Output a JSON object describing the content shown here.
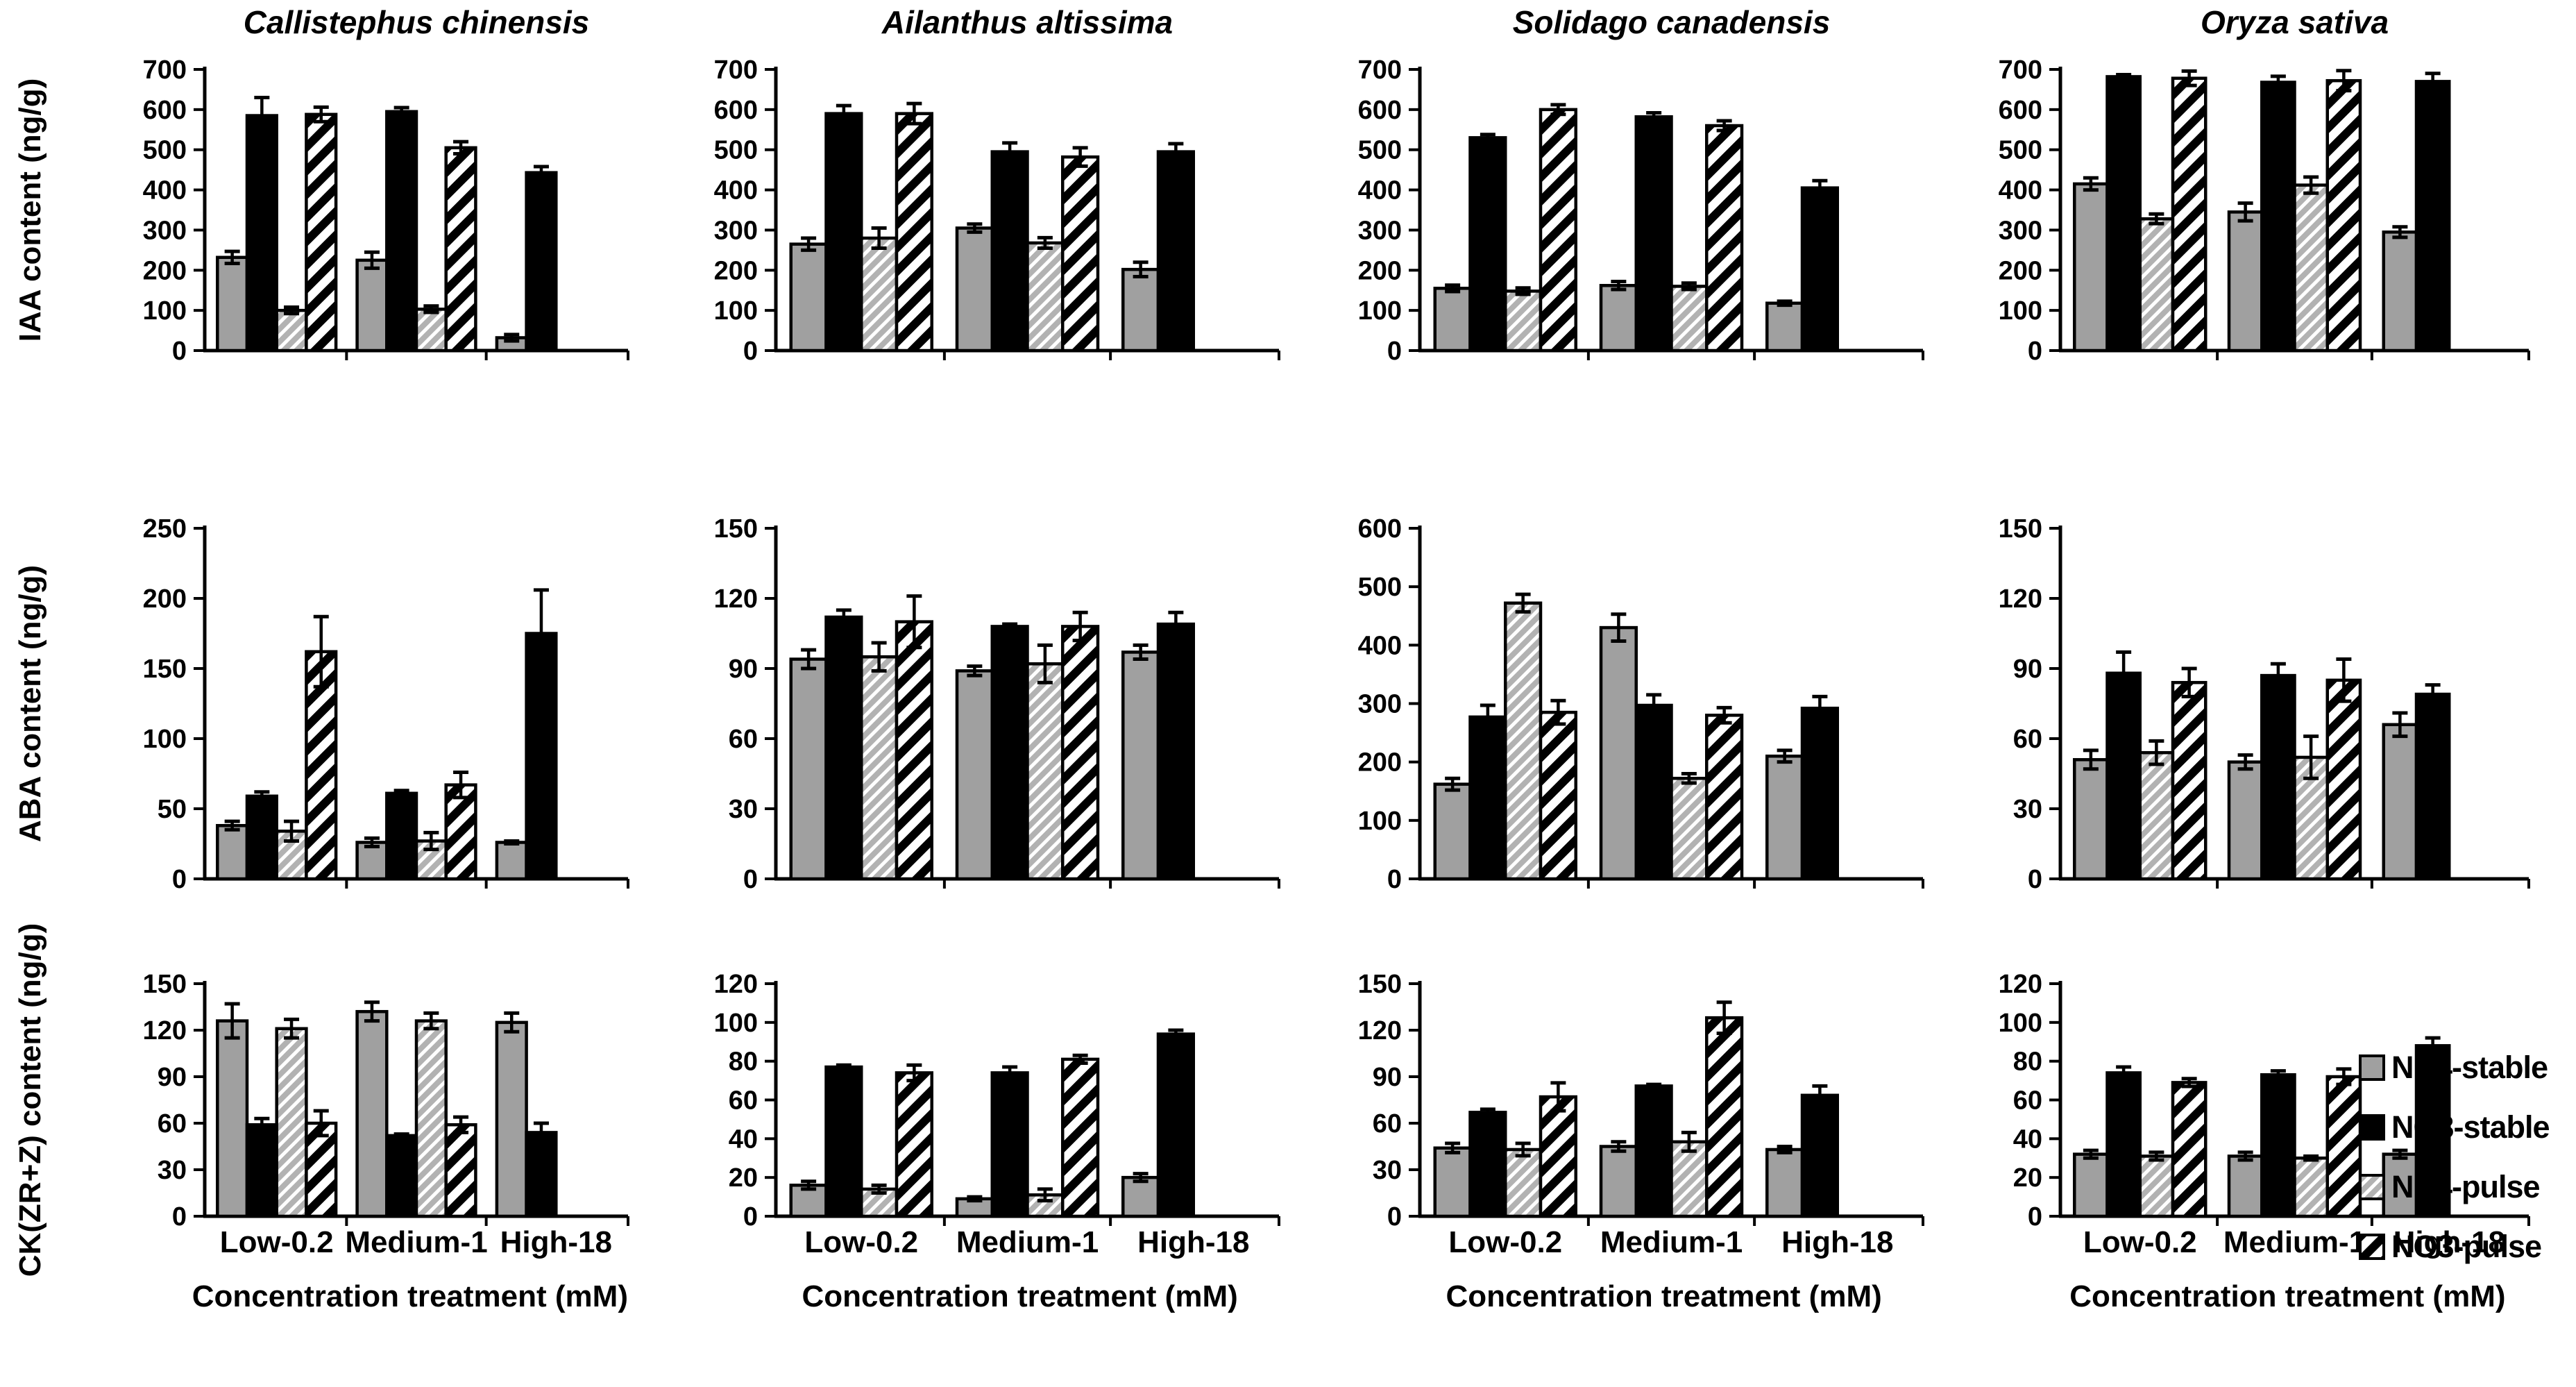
{
  "figure": {
    "background": "#ffffff",
    "x_axis_title": "Concentration treatment (mM)",
    "categories": [
      "Low-0.2",
      "Medium-1",
      "High-18"
    ],
    "row_ylabels": [
      "IAA content (ng/g)",
      "ABA content (ng/g)",
      "CK(ZR+Z) content (ng/g)"
    ],
    "column_titles": [
      "Callistephus chinensis",
      "Ailanthus altissima",
      "Solidago canadensis",
      "Oryza sativa"
    ],
    "legend": {
      "position": "right-bottom",
      "items": [
        {
          "label": "NH4-stable",
          "pattern": "gray-solid"
        },
        {
          "label": "NO3-stable",
          "pattern": "black-solid"
        },
        {
          "label": "NH4-pulse",
          "pattern": "gray-hatch"
        },
        {
          "label": "NO3-pulse",
          "pattern": "black-hatch"
        }
      ]
    },
    "colors": {
      "bar_gray": "#a0a0a0",
      "bar_black": "#000000",
      "hatch_gray_bg": "#b2b2b2",
      "hatch_gray_stripe": "#ffffff",
      "hatch_black_bg": "#ffffff",
      "hatch_black_stripe": "#000000",
      "axis": "#000000",
      "text": "#000000"
    }
  },
  "chart_data": [
    {
      "type": "bar",
      "row": 0,
      "col": 0,
      "title": "Callistephus chinensis",
      "ylabel": "IAA content (ng/g)",
      "ylim": [
        0,
        700
      ],
      "ystep": 100,
      "grid": false,
      "categories": [
        "Low-0.2",
        "Medium-1",
        "High-18"
      ],
      "series": [
        {
          "name": "NH4-stable",
          "values": [
            232,
            225,
            32
          ],
          "errors": [
            15,
            20,
            8
          ]
        },
        {
          "name": "NO3-stable",
          "values": [
            585,
            595,
            443
          ],
          "errors": [
            45,
            10,
            15
          ]
        },
        {
          "name": "NH4-pulse",
          "values": [
            100,
            103,
            null
          ],
          "errors": [
            8,
            8,
            null
          ]
        },
        {
          "name": "NO3-pulse",
          "values": [
            588,
            505,
            null
          ],
          "errors": [
            18,
            15,
            null
          ]
        }
      ]
    },
    {
      "type": "bar",
      "row": 0,
      "col": 1,
      "title": "Ailanthus altissima",
      "ylabel": null,
      "ylim": [
        0,
        700
      ],
      "ystep": 100,
      "grid": false,
      "categories": [
        "Low-0.2",
        "Medium-1",
        "High-18"
      ],
      "series": [
        {
          "name": "NH4-stable",
          "values": [
            265,
            305,
            202
          ],
          "errors": [
            15,
            10,
            18
          ]
        },
        {
          "name": "NO3-stable",
          "values": [
            590,
            495,
            495
          ],
          "errors": [
            20,
            22,
            20
          ]
        },
        {
          "name": "NH4-pulse",
          "values": [
            280,
            268,
            null
          ],
          "errors": [
            25,
            13,
            null
          ]
        },
        {
          "name": "NO3-pulse",
          "values": [
            590,
            482,
            null
          ],
          "errors": [
            25,
            23,
            null
          ]
        }
      ]
    },
    {
      "type": "bar",
      "row": 0,
      "col": 2,
      "title": "Solidago canadensis",
      "ylabel": null,
      "ylim": [
        0,
        700
      ],
      "ystep": 100,
      "grid": false,
      "categories": [
        "Low-0.2",
        "Medium-1",
        "High-18"
      ],
      "series": [
        {
          "name": "NH4-stable",
          "values": [
            155,
            162,
            118
          ],
          "errors": [
            8,
            10,
            5
          ]
        },
        {
          "name": "NO3-stable",
          "values": [
            530,
            582,
            405
          ],
          "errors": [
            8,
            10,
            18
          ]
        },
        {
          "name": "NH4-pulse",
          "values": [
            148,
            160,
            null
          ],
          "errors": [
            8,
            8,
            null
          ]
        },
        {
          "name": "NO3-pulse",
          "values": [
            600,
            560,
            null
          ],
          "errors": [
            12,
            12,
            null
          ]
        }
      ]
    },
    {
      "type": "bar",
      "row": 0,
      "col": 3,
      "title": "Oryza sativa",
      "ylabel": null,
      "ylim": [
        0,
        700
      ],
      "ystep": 100,
      "grid": false,
      "categories": [
        "Low-0.2",
        "Medium-1",
        "High-18"
      ],
      "series": [
        {
          "name": "NH4-stable",
          "values": [
            415,
            345,
            295
          ],
          "errors": [
            15,
            22,
            13
          ]
        },
        {
          "name": "NO3-stable",
          "values": [
            682,
            668,
            670
          ],
          "errors": [
            5,
            15,
            20
          ]
        },
        {
          "name": "NH4-pulse",
          "values": [
            328,
            412,
            null
          ],
          "errors": [
            12,
            20,
            null
          ]
        },
        {
          "name": "NO3-pulse",
          "values": [
            678,
            672,
            null
          ],
          "errors": [
            18,
            25,
            null
          ]
        }
      ]
    },
    {
      "type": "bar",
      "row": 1,
      "col": 0,
      "title": null,
      "ylabel": "ABA content (ng/g)",
      "ylim": [
        0,
        250
      ],
      "ystep": 50,
      "grid": false,
      "categories": [
        "Low-0.2",
        "Medium-1",
        "High-18"
      ],
      "series": [
        {
          "name": "NH4-stable",
          "values": [
            38,
            26,
            26
          ],
          "errors": [
            3,
            3,
            1
          ]
        },
        {
          "name": "NO3-stable",
          "values": [
            59,
            61,
            175
          ],
          "errors": [
            3,
            2,
            31
          ]
        },
        {
          "name": "NH4-pulse",
          "values": [
            34,
            27,
            null
          ],
          "errors": [
            7,
            6,
            null
          ]
        },
        {
          "name": "NO3-pulse",
          "values": [
            162,
            67,
            null
          ],
          "errors": [
            25,
            9,
            null
          ]
        }
      ]
    },
    {
      "type": "bar",
      "row": 1,
      "col": 1,
      "title": null,
      "ylabel": null,
      "ylim": [
        0,
        150
      ],
      "ystep": 30,
      "grid": false,
      "categories": [
        "Low-0.2",
        "Medium-1",
        "High-18"
      ],
      "series": [
        {
          "name": "NH4-stable",
          "values": [
            94,
            89,
            97
          ],
          "errors": [
            4,
            2,
            3
          ]
        },
        {
          "name": "NO3-stable",
          "values": [
            112,
            108,
            109
          ],
          "errors": [
            3,
            1,
            5
          ]
        },
        {
          "name": "NH4-pulse",
          "values": [
            95,
            92,
            null
          ],
          "errors": [
            6,
            8,
            null
          ]
        },
        {
          "name": "NO3-pulse",
          "values": [
            110,
            108,
            null
          ],
          "errors": [
            11,
            6,
            null
          ]
        }
      ]
    },
    {
      "type": "bar",
      "row": 1,
      "col": 2,
      "title": null,
      "ylabel": null,
      "ylim": [
        0,
        600
      ],
      "ystep": 100,
      "grid": false,
      "categories": [
        "Low-0.2",
        "Medium-1",
        "High-18"
      ],
      "series": [
        {
          "name": "NH4-stable",
          "values": [
            162,
            430,
            210
          ],
          "errors": [
            10,
            23,
            10
          ]
        },
        {
          "name": "NO3-stable",
          "values": [
            277,
            297,
            292
          ],
          "errors": [
            20,
            18,
            20
          ]
        },
        {
          "name": "NH4-pulse",
          "values": [
            472,
            172,
            null
          ],
          "errors": [
            15,
            8,
            null
          ]
        },
        {
          "name": "NO3-pulse",
          "values": [
            285,
            280,
            null
          ],
          "errors": [
            20,
            13,
            null
          ]
        }
      ]
    },
    {
      "type": "bar",
      "row": 1,
      "col": 3,
      "title": null,
      "ylabel": null,
      "ylim": [
        0,
        150
      ],
      "ystep": 30,
      "grid": false,
      "categories": [
        "Low-0.2",
        "Medium-1",
        "High-18"
      ],
      "series": [
        {
          "name": "NH4-stable",
          "values": [
            51,
            50,
            66
          ],
          "errors": [
            4,
            3,
            5
          ]
        },
        {
          "name": "NO3-stable",
          "values": [
            88,
            87,
            79
          ],
          "errors": [
            9,
            5,
            4
          ]
        },
        {
          "name": "NH4-pulse",
          "values": [
            54,
            52,
            null
          ],
          "errors": [
            5,
            9,
            null
          ]
        },
        {
          "name": "NO3-pulse",
          "values": [
            84,
            85,
            null
          ],
          "errors": [
            6,
            9,
            null
          ]
        }
      ]
    },
    {
      "type": "bar",
      "row": 2,
      "col": 0,
      "title": null,
      "ylabel": "CK(ZR+Z) content (ng/g)",
      "ylim": [
        0,
        150
      ],
      "ystep": 30,
      "grid": false,
      "categories": [
        "Low-0.2",
        "Medium-1",
        "High-18"
      ],
      "series": [
        {
          "name": "NH4-stable",
          "values": [
            126,
            132,
            125
          ],
          "errors": [
            11,
            6,
            6
          ]
        },
        {
          "name": "NO3-stable",
          "values": [
            59,
            52,
            54
          ],
          "errors": [
            4,
            1,
            6
          ]
        },
        {
          "name": "NH4-pulse",
          "values": [
            121,
            126,
            null
          ],
          "errors": [
            6,
            5,
            null
          ]
        },
        {
          "name": "NO3-pulse",
          "values": [
            60,
            59,
            null
          ],
          "errors": [
            8,
            5,
            null
          ]
        }
      ]
    },
    {
      "type": "bar",
      "row": 2,
      "col": 1,
      "title": null,
      "ylabel": null,
      "ylim": [
        0,
        120
      ],
      "ystep": 20,
      "grid": false,
      "categories": [
        "Low-0.2",
        "Medium-1",
        "High-18"
      ],
      "series": [
        {
          "name": "NH4-stable",
          "values": [
            16,
            9,
            20
          ],
          "errors": [
            2,
            1,
            2
          ]
        },
        {
          "name": "NO3-stable",
          "values": [
            77,
            74,
            94
          ],
          "errors": [
            1,
            3,
            2
          ]
        },
        {
          "name": "NH4-pulse",
          "values": [
            14,
            11,
            null
          ],
          "errors": [
            2,
            3,
            null
          ]
        },
        {
          "name": "NO3-pulse",
          "values": [
            74,
            81,
            null
          ],
          "errors": [
            4,
            2,
            null
          ]
        }
      ]
    },
    {
      "type": "bar",
      "row": 2,
      "col": 2,
      "title": null,
      "ylabel": null,
      "ylim": [
        0,
        150
      ],
      "ystep": 30,
      "grid": false,
      "categories": [
        "Low-0.2",
        "Medium-1",
        "High-18"
      ],
      "series": [
        {
          "name": "NH4-stable",
          "values": [
            44,
            45,
            43
          ],
          "errors": [
            3,
            3,
            2
          ]
        },
        {
          "name": "NO3-stable",
          "values": [
            67,
            84,
            78
          ],
          "errors": [
            2,
            1,
            6
          ]
        },
        {
          "name": "NH4-pulse",
          "values": [
            43,
            48,
            null
          ],
          "errors": [
            4,
            6,
            null
          ]
        },
        {
          "name": "NO3-pulse",
          "values": [
            77,
            128,
            null
          ],
          "errors": [
            9,
            10,
            null
          ]
        }
      ]
    },
    {
      "type": "bar",
      "row": 2,
      "col": 3,
      "title": null,
      "ylabel": null,
      "ylim": [
        0,
        120
      ],
      "ystep": 20,
      "grid": false,
      "categories": [
        "Low-0.2",
        "Medium-1",
        "High-18"
      ],
      "series": [
        {
          "name": "NH4-stable",
          "values": [
            32,
            31,
            32
          ],
          "errors": [
            2,
            2,
            2
          ]
        },
        {
          "name": "NO3-stable",
          "values": [
            74,
            73,
            88
          ],
          "errors": [
            3,
            2,
            4
          ]
        },
        {
          "name": "NH4-pulse",
          "values": [
            31,
            30,
            null
          ],
          "errors": [
            2,
            1,
            null
          ]
        },
        {
          "name": "NO3-pulse",
          "values": [
            69,
            72,
            null
          ],
          "errors": [
            2,
            4,
            null
          ]
        }
      ]
    }
  ]
}
